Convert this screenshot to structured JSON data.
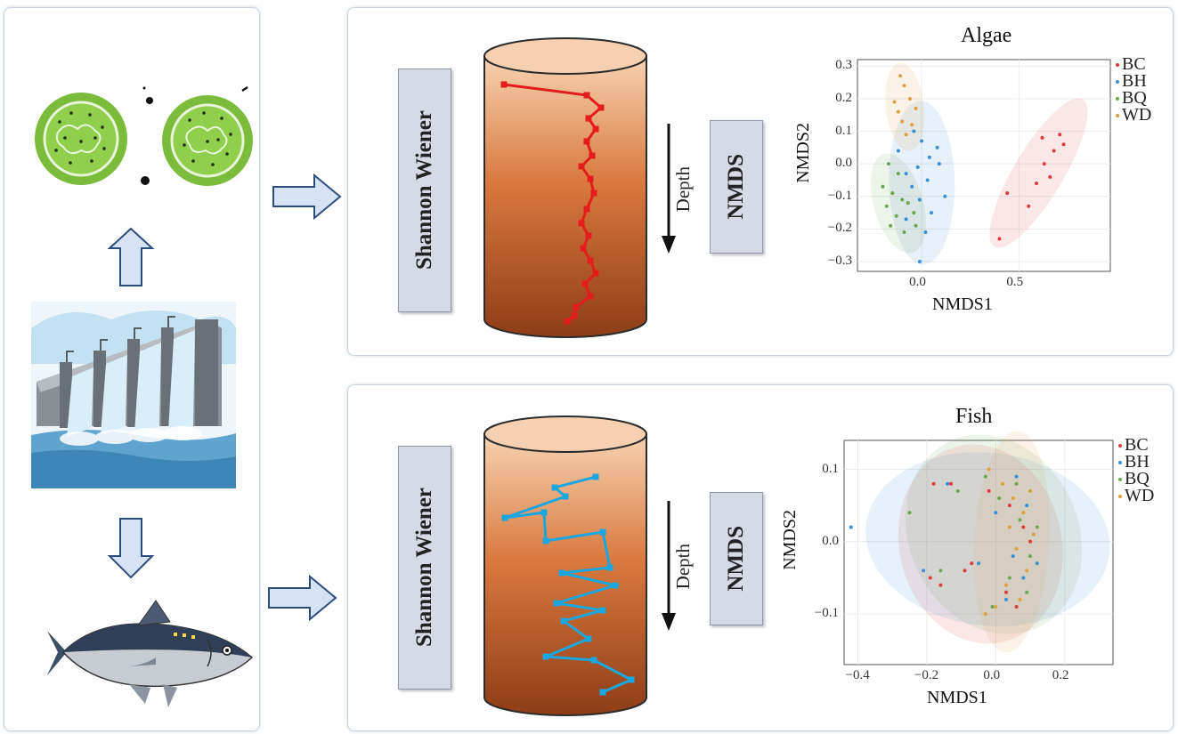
{
  "labels": {
    "shannon_wiener": "Shannon Wiener",
    "nmds": "NMDS",
    "depth": "Depth"
  },
  "icons": {
    "algae": "algae-cell-icon",
    "dam": "dam-icon",
    "fish": "fish-icon",
    "arrow": "arrow-icon"
  },
  "colors": {
    "BC": "#e03a3a",
    "BH": "#3b8fd6",
    "BQ": "#6aa84f",
    "WD": "#e0a040",
    "algae_line": "#e51c1c",
    "fish_line": "#1aa7df"
  },
  "chart_data": [
    {
      "type": "scatter",
      "title": "Algae",
      "xlabel": "NMDS1",
      "ylabel": "NMDS2",
      "xticks": [
        "0.0",
        "0.5"
      ],
      "yticks": [
        "0.3",
        "0.2",
        "0.1",
        "0.0",
        "−0.1",
        "−0.2",
        "−0.3"
      ],
      "xlim": [
        -0.33,
        0.97
      ],
      "ylim": [
        -0.33,
        0.32
      ],
      "legend": "top-right",
      "series": [
        {
          "name": "BC",
          "points": [
            [
              0.62,
              0.08
            ],
            [
              0.71,
              0.09
            ],
            [
              0.73,
              0.06
            ],
            [
              0.68,
              0.04
            ],
            [
              0.63,
              0.0
            ],
            [
              0.66,
              -0.04
            ],
            [
              0.59,
              -0.06
            ],
            [
              0.44,
              -0.09
            ],
            [
              0.55,
              -0.13
            ],
            [
              0.4,
              -0.23
            ]
          ]
        },
        {
          "name": "BH",
          "points": [
            [
              -0.04,
              0.1
            ],
            [
              0.0,
              0.07
            ],
            [
              0.08,
              0.05
            ],
            [
              -0.12,
              0.04
            ],
            [
              0.04,
              0.02
            ],
            [
              -0.02,
              -0.01
            ],
            [
              0.09,
              0.0
            ],
            [
              -0.08,
              -0.03
            ],
            [
              0.03,
              -0.05
            ],
            [
              -0.05,
              -0.07
            ],
            [
              0.12,
              -0.1
            ],
            [
              -0.01,
              -0.11
            ],
            [
              0.05,
              -0.15
            ],
            [
              -0.08,
              -0.17
            ],
            [
              0.02,
              -0.21
            ],
            [
              -0.01,
              -0.3
            ]
          ]
        },
        {
          "name": "BQ",
          "points": [
            [
              -0.17,
              0.0
            ],
            [
              -0.12,
              -0.03
            ],
            [
              -0.2,
              -0.07
            ],
            [
              -0.15,
              -0.09
            ],
            [
              -0.1,
              -0.11
            ],
            [
              -0.18,
              -0.13
            ],
            [
              -0.07,
              -0.12
            ],
            [
              -0.13,
              -0.16
            ],
            [
              -0.04,
              -0.15
            ],
            [
              -0.16,
              -0.19
            ],
            [
              -0.09,
              -0.21
            ],
            [
              -0.03,
              -0.19
            ]
          ]
        },
        {
          "name": "WD",
          "points": [
            [
              -0.11,
              0.27
            ],
            [
              -0.09,
              0.24
            ],
            [
              -0.14,
              0.19
            ],
            [
              -0.06,
              0.2
            ],
            [
              -0.12,
              0.16
            ],
            [
              -0.03,
              0.17
            ],
            [
              -0.1,
              0.13
            ],
            [
              -0.05,
              0.12
            ],
            [
              -0.08,
              0.09
            ]
          ]
        }
      ]
    },
    {
      "type": "scatter",
      "title": "Fish",
      "xlabel": "NMDS1",
      "ylabel": "NMDS2",
      "xticks": [
        "−0.4",
        "−0.2",
        "0.0",
        "0.2"
      ],
      "yticks": [
        "0.1",
        "0.0",
        "−0.1"
      ],
      "xlim": [
        -0.44,
        0.34
      ],
      "ylim": [
        -0.17,
        0.14
      ],
      "legend": "top-right",
      "series": [
        {
          "name": "BC",
          "points": [
            [
              -0.18,
              0.08
            ],
            [
              -0.13,
              0.08
            ],
            [
              -0.07,
              -0.03
            ],
            [
              -0.09,
              -0.04
            ],
            [
              -0.19,
              -0.05
            ],
            [
              -0.16,
              -0.06
            ],
            [
              0.04,
              0.05
            ],
            [
              0.08,
              0.02
            ],
            [
              0.1,
              0.0
            ],
            [
              0.03,
              -0.07
            ],
            [
              0.06,
              -0.09
            ],
            [
              -0.02,
              0.07
            ]
          ]
        },
        {
          "name": "BH",
          "points": [
            [
              -0.42,
              0.02
            ],
            [
              -0.21,
              -0.04
            ],
            [
              -0.14,
              0.08
            ],
            [
              -0.05,
              -0.03
            ],
            [
              0.06,
              0.09
            ],
            [
              0.09,
              0.05
            ],
            [
              0.11,
              0.01
            ],
            [
              0.05,
              -0.02
            ],
            [
              0.08,
              -0.05
            ],
            [
              0.03,
              -0.08
            ],
            [
              0.12,
              -0.03
            ],
            [
              0.0,
              0.04
            ]
          ]
        },
        {
          "name": "BQ",
          "points": [
            [
              -0.25,
              0.04
            ],
            [
              -0.16,
              -0.04
            ],
            [
              -0.11,
              0.07
            ],
            [
              -0.03,
              0.09
            ],
            [
              0.01,
              0.06
            ],
            [
              0.07,
              0.03
            ],
            [
              0.1,
              -0.02
            ],
            [
              0.04,
              -0.05
            ],
            [
              0.09,
              -0.07
            ],
            [
              -0.01,
              -0.09
            ],
            [
              0.06,
              0.08
            ],
            [
              0.12,
              0.02
            ]
          ]
        },
        {
          "name": "WD",
          "points": [
            [
              -0.02,
              0.1
            ],
            [
              0.02,
              0.08
            ],
            [
              0.05,
              0.06
            ],
            [
              0.08,
              0.04
            ],
            [
              0.11,
              0.01
            ],
            [
              0.06,
              -0.01
            ],
            [
              0.09,
              -0.04
            ],
            [
              0.03,
              -0.06
            ],
            [
              0.07,
              -0.08
            ],
            [
              -0.03,
              -0.1
            ],
            [
              0.0,
              -0.09
            ],
            [
              0.1,
              0.07
            ],
            [
              0.04,
              0.02
            ]
          ]
        }
      ]
    }
  ]
}
